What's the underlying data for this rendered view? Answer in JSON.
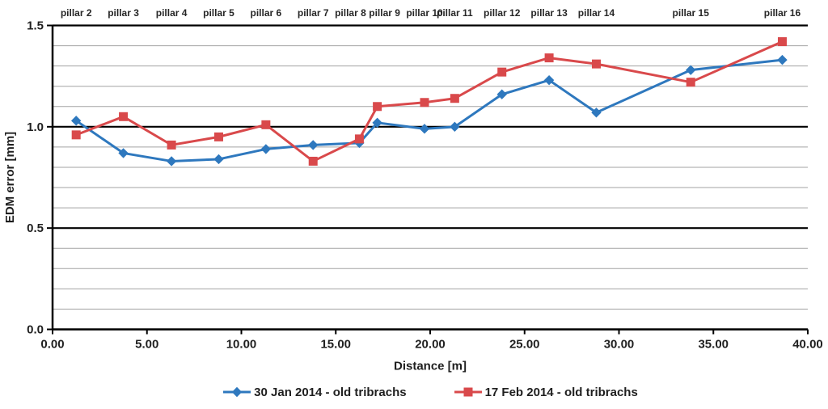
{
  "chart_data": {
    "type": "line",
    "title": "",
    "xlabel": "Distance [m]",
    "ylabel": "EDM error [mm]",
    "xlim": [
      0,
      40
    ],
    "ylim": [
      0,
      1.5
    ],
    "grid": "horizontal",
    "legend_position": "bottom",
    "x_ticks": [
      "0.00",
      "5.00",
      "10.00",
      "15.00",
      "20.00",
      "25.00",
      "30.00",
      "35.00",
      "40.00"
    ],
    "x_tick_values": [
      0,
      5,
      10,
      15,
      20,
      25,
      30,
      35,
      40
    ],
    "y_ticks": [
      "0.0",
      "0.5",
      "1.0",
      "1.5"
    ],
    "y_tick_values": [
      0,
      0.5,
      1.0,
      1.5
    ],
    "minor_grid_values": [
      0.1,
      0.2,
      0.3,
      0.4,
      0.6,
      0.7,
      0.8,
      0.9,
      1.1,
      1.2,
      1.3,
      1.4
    ],
    "major_grid_values": [
      0.5,
      1.0,
      1.5
    ],
    "colors": {
      "grid_minor": "#A3A3A3",
      "grid_major": "#000000",
      "axis": "#000000",
      "text": "#1F1F1F"
    },
    "pillar_labels": [
      "pillar 2",
      "pillar 3",
      "pillar 4",
      "pillar 5",
      "pillar 6",
      "pillar 7",
      "pillar 8",
      "pillar 9",
      "pillar 10",
      "pillar 11",
      "pillar 12",
      "pillar 13",
      "pillar 14",
      "pillar 15",
      "pillar 16"
    ],
    "pillar_label_dx": [
      0,
      0,
      0,
      0,
      0,
      0,
      -11,
      9,
      0,
      0,
      0,
      0,
      0,
      0,
      0
    ],
    "x": [
      1.25,
      3.75,
      6.3,
      8.8,
      11.3,
      13.8,
      16.25,
      17.2,
      19.7,
      21.3,
      23.8,
      26.3,
      28.8,
      33.8,
      38.65
    ],
    "series": [
      {
        "name": "30 Jan 2014 - old tribrachs",
        "color": "#2E78BE",
        "marker": "diamond",
        "values": [
          1.03,
          0.87,
          0.83,
          0.84,
          0.89,
          0.91,
          0.92,
          1.02,
          0.99,
          1.0,
          1.16,
          1.23,
          1.07,
          1.28,
          1.33
        ]
      },
      {
        "name": "17 Feb 2014 - old tribrachs",
        "color": "#D9494B",
        "marker": "square",
        "values": [
          0.96,
          1.05,
          0.91,
          0.95,
          1.01,
          0.83,
          0.94,
          1.1,
          1.12,
          1.14,
          1.27,
          1.34,
          1.31,
          1.22,
          1.42
        ]
      }
    ]
  }
}
